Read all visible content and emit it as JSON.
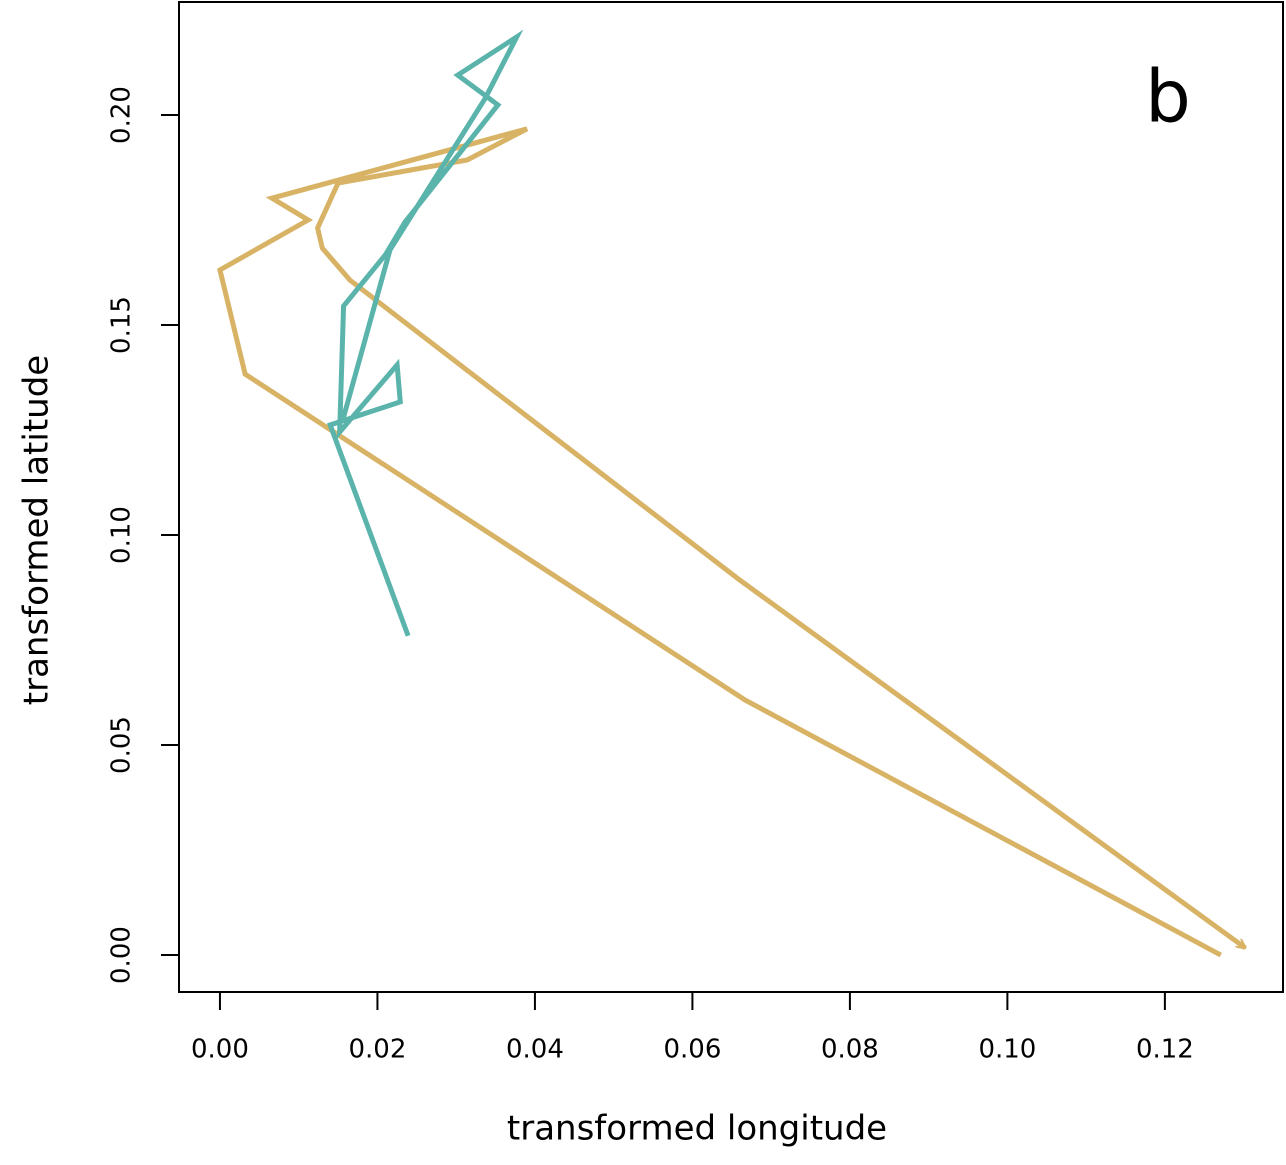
{
  "chart_data": {
    "type": "line",
    "x_label": "transformed longitude",
    "y_label": "transformed latitude",
    "annotation": "b",
    "xlim": [
      -0.0052,
      0.135
    ],
    "ylim": [
      -0.0088,
      0.2269
    ],
    "xticks": [
      {
        "value": 0,
        "label": "0.00"
      },
      {
        "value": 0.02,
        "label": "0.02"
      },
      {
        "value": 0.04,
        "label": "0.04"
      },
      {
        "value": 0.06,
        "label": "0.06"
      },
      {
        "value": 0.08,
        "label": "0.08"
      },
      {
        "value": 0.1,
        "label": "0.10"
      },
      {
        "value": 0.12,
        "label": "0.12"
      }
    ],
    "yticks": [
      {
        "value": 0,
        "label": "0.00"
      },
      {
        "value": 0.05,
        "label": "0.05"
      },
      {
        "value": 0.1,
        "label": "0.10"
      },
      {
        "value": 0.15,
        "label": "0.15"
      },
      {
        "value": 0.2,
        "label": "0.20"
      }
    ],
    "series": [
      {
        "color": "#d8b365",
        "arrow": true,
        "x": [
          0.1271,
          0.0667,
          0.0032,
          0,
          0.0112,
          0.0066,
          0.039,
          0.0314,
          0.015,
          0.0124,
          0.013,
          0.0165,
          0.066,
          0.1302
        ],
        "values": [
          0.0,
          0.0607,
          0.1383,
          0.1631,
          0.175,
          0.1802,
          0.1967,
          0.1893,
          0.1838,
          0.1731,
          0.1683,
          0.1607,
          0.0893,
          0.0017
        ]
      },
      {
        "color": "#5ab4ac",
        "arrow": false,
        "x": [
          0.0239,
          0.014,
          0.0229,
          0.0225,
          0.0152,
          0.0157,
          0.021,
          0.0235,
          0.0353,
          0.0302,
          0.0377,
          0.0337,
          0.0216,
          0.0156
        ],
        "values": [
          0.076,
          0.1262,
          0.1317,
          0.1405,
          0.1245,
          0.1545,
          0.1667,
          0.1745,
          0.2024,
          0.2095,
          0.2186,
          0.204,
          0.1679,
          0.1274
        ]
      }
    ]
  }
}
